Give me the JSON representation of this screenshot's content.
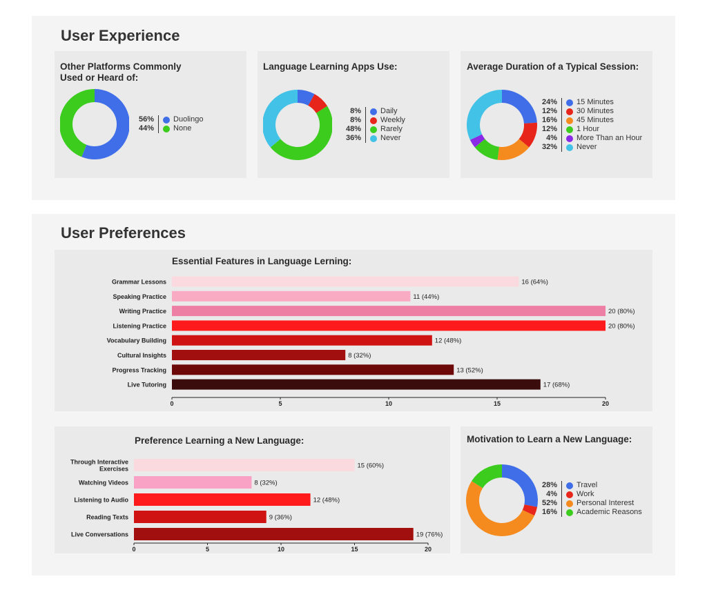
{
  "section_experience": {
    "title": "User Experience"
  },
  "section_preferences": {
    "title": "User Preferences"
  },
  "chart_data": [
    {
      "id": "platforms",
      "type": "pie",
      "title": "Other Platforms Commonly Used or Heard of:",
      "title_lines": [
        "Other Platforms Commonly",
        "Used or Heard of:"
      ],
      "labels": [
        "Duolingo",
        "None"
      ],
      "values": [
        56,
        44
      ],
      "pct_labels": [
        "56%",
        "44%"
      ],
      "colors": [
        "#3f6ee8",
        "#3ccc1e"
      ]
    },
    {
      "id": "apps_use",
      "type": "pie",
      "title": "Language Learning Apps Use:",
      "labels": [
        "Daily",
        "Weekly",
        "Rarely",
        "Never"
      ],
      "values": [
        8,
        8,
        48,
        36
      ],
      "pct_labels": [
        "8%",
        "8%",
        "48%",
        "36%"
      ],
      "colors": [
        "#3f6ee8",
        "#e8251a",
        "#3ccc1e",
        "#42c2e6"
      ]
    },
    {
      "id": "duration",
      "type": "pie",
      "title": "Average Duration of a Typical Session:",
      "labels": [
        "15 Minutes",
        "30 Minutes",
        "45 Minutes",
        "1 Hour",
        "More Than an Hour",
        "Never"
      ],
      "values": [
        24,
        12,
        16,
        12,
        4,
        32
      ],
      "pct_labels": [
        "24%",
        "12%",
        "16%",
        "12%",
        "4%",
        "32%"
      ],
      "colors": [
        "#3f6ee8",
        "#e8251a",
        "#f58a1f",
        "#3ccc1e",
        "#8b2ae6",
        "#42c2e6"
      ]
    },
    {
      "id": "features",
      "type": "bar",
      "orientation": "horizontal",
      "title": "Essential Features in Language Lerning:",
      "categories": [
        "Grammar Lessons",
        "Speaking Practice",
        "Writing Practice",
        "Listening Practice",
        "Vocabulary Building",
        "Cultural Insights",
        "Progress Tracking",
        "Live Tutoring"
      ],
      "values": [
        16,
        11,
        20,
        20,
        12,
        8,
        13,
        17
      ],
      "value_labels": [
        "16 (64%)",
        "11 (44%)",
        "20 (80%)",
        "20 (80%)",
        "12 (48%)",
        "8 (32%)",
        "13 (52%)",
        "17 (68%)"
      ],
      "colors": [
        "#fadadf",
        "#f9abc4",
        "#ee7fa4",
        "#ff1b1b",
        "#cf1212",
        "#a20f0f",
        "#6e0909",
        "#3b0c0c"
      ],
      "xlim": [
        0,
        20
      ],
      "xticks": [
        "0",
        "5",
        "10",
        "15",
        "20"
      ]
    },
    {
      "id": "preference",
      "type": "bar",
      "orientation": "horizontal",
      "title": "Preference  Learning a New Language:",
      "categories": [
        "Through Interactive Exercises",
        "Watching Videos",
        "Listening to Audio",
        "Reading Texts",
        "Live Conversations"
      ],
      "category_lines": [
        [
          "Through Interactive",
          "Exercises"
        ],
        [
          "Watching Videos"
        ],
        [
          "Listening to Audio"
        ],
        [
          "Reading Texts"
        ],
        [
          "Live Conversations"
        ]
      ],
      "values": [
        15,
        8,
        12,
        9,
        19
      ],
      "value_labels": [
        "15 (60%)",
        "8 (32%)",
        "12 (48%)",
        "9 (36%)",
        "19 (76%)"
      ],
      "colors": [
        "#fadadf",
        "#f9a2c5",
        "#ff1b1b",
        "#cf1212",
        "#a20f0f"
      ],
      "xlim": [
        0,
        20
      ],
      "xticks": [
        "0",
        "5",
        "10",
        "15",
        "20"
      ]
    },
    {
      "id": "motivation",
      "type": "pie",
      "title": "Motivation to Learn a New Language:",
      "labels": [
        "Travel",
        "Work",
        "Personal Interest",
        "Academic Reasons"
      ],
      "values": [
        28,
        4,
        52,
        16
      ],
      "pct_labels": [
        "28%",
        "4%",
        "52%",
        "16%"
      ],
      "colors": [
        "#3f6ee8",
        "#e8251a",
        "#f58a1f",
        "#3ccc1e"
      ]
    }
  ]
}
